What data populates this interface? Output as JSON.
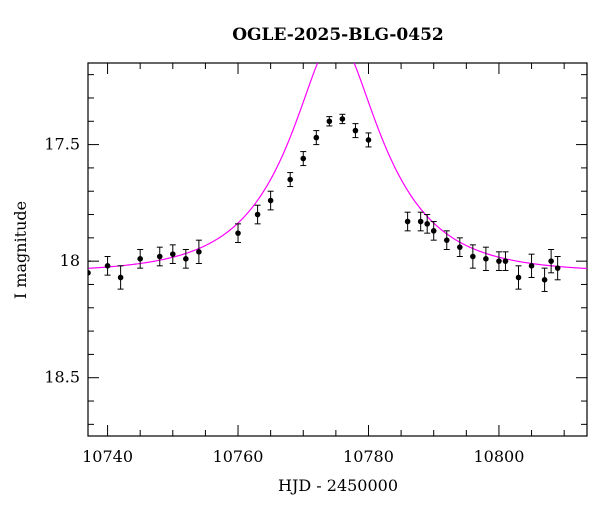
{
  "chart_data": {
    "type": "scatter",
    "title": "OGLE-2025-BLG-0452",
    "xlabel": "HJD - 2450000",
    "ylabel": "I magnitude",
    "xlim": [
      10737,
      10813.5
    ],
    "ylim": [
      18.75,
      17.15
    ],
    "y_inverted": true,
    "grid": false,
    "x_ticks": [
      10740,
      10760,
      10780,
      10800
    ],
    "x_tick_labels": [
      "10740",
      "10760",
      "10780",
      "10800"
    ],
    "y_ticks": [
      17.5,
      18,
      18.5
    ],
    "y_tick_labels": [
      "17.5",
      "18",
      "18.5"
    ],
    "series": [
      {
        "kind": "points_with_errorbars",
        "color": "#000000",
        "x": [
          10737,
          10740,
          10742,
          10745,
          10748,
          10750,
          10752,
          10754,
          10760,
          10763,
          10765,
          10768,
          10770,
          10772,
          10774,
          10776,
          10778,
          10780,
          10786,
          10788,
          10789,
          10790,
          10792,
          10794,
          10796,
          10798,
          10800,
          10801,
          10803,
          10805,
          10807,
          10808,
          10809
        ],
        "y": [
          18.05,
          18.02,
          18.07,
          17.99,
          17.98,
          17.97,
          17.99,
          17.96,
          17.88,
          17.8,
          17.74,
          17.65,
          17.56,
          17.47,
          17.4,
          17.39,
          17.44,
          17.48,
          17.83,
          17.83,
          17.84,
          17.87,
          17.91,
          17.94,
          17.98,
          17.99,
          18.0,
          18.0,
          18.07,
          18.02,
          18.08,
          18.0,
          18.03
        ],
        "err": [
          0.05,
          0.04,
          0.05,
          0.04,
          0.04,
          0.04,
          0.04,
          0.05,
          0.04,
          0.04,
          0.04,
          0.03,
          0.03,
          0.03,
          0.02,
          0.02,
          0.03,
          0.03,
          0.04,
          0.04,
          0.04,
          0.04,
          0.04,
          0.04,
          0.05,
          0.05,
          0.04,
          0.04,
          0.05,
          0.05,
          0.05,
          0.05,
          0.05
        ]
      },
      {
        "kind": "model_curve",
        "color": "#ff00ff",
        "model": "paczynski",
        "t0": 10775,
        "u0": 0.42,
        "tE": 13,
        "baseline_mag": 18.05
      }
    ]
  }
}
